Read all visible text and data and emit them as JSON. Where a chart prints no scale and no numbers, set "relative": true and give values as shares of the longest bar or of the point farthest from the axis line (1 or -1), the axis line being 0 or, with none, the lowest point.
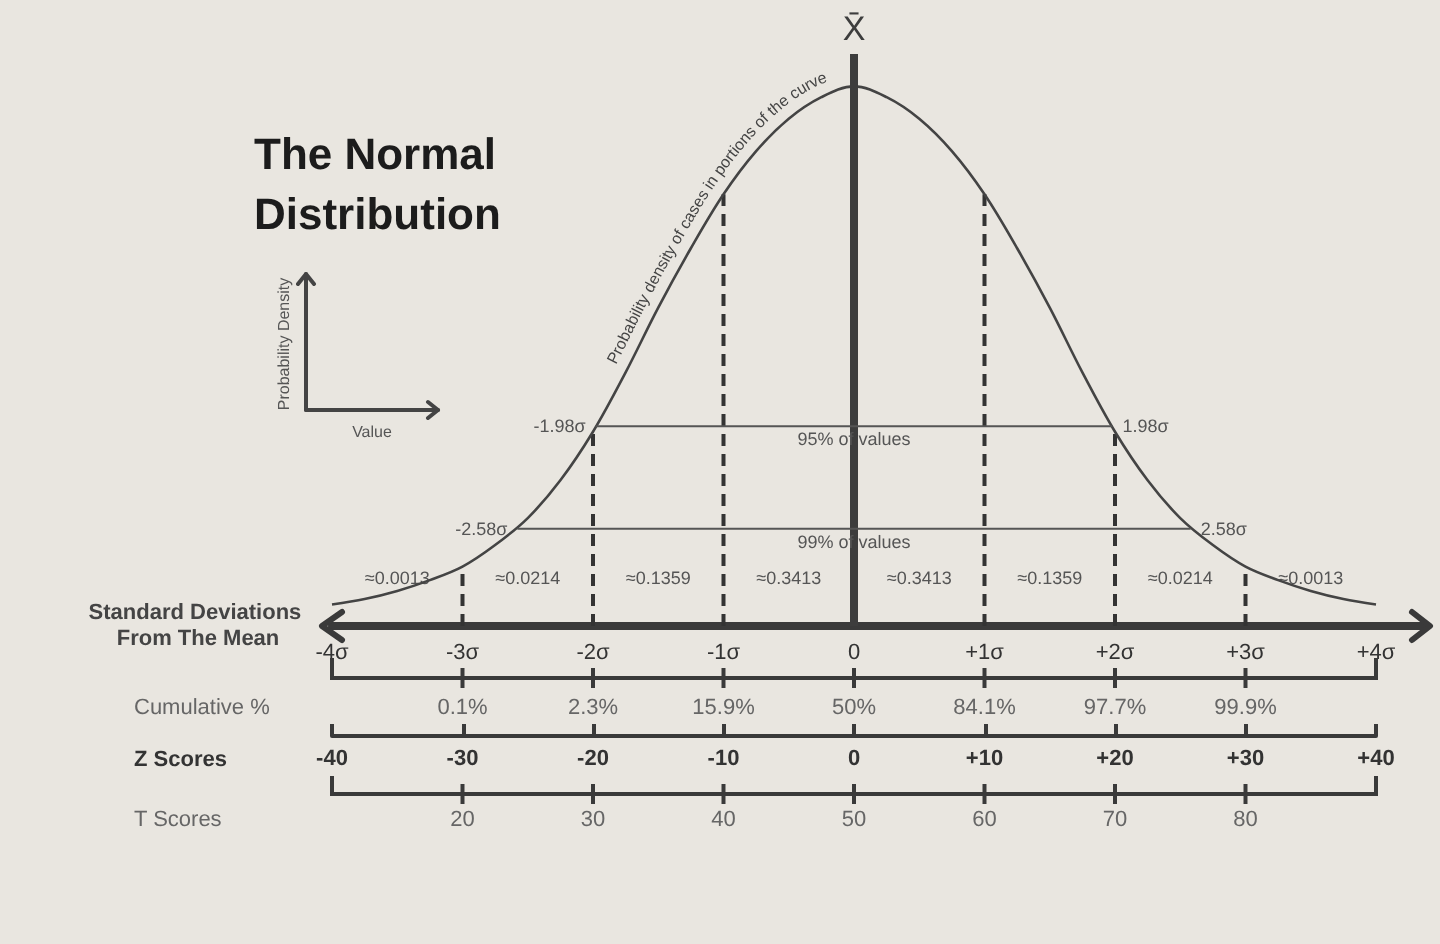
{
  "chart_data": {
    "type": "line",
    "title": "The Normal Distribution",
    "xlabel": "Standard Deviations From The Mean",
    "ylabel": "Probability Density",
    "relative": true,
    "marker": "none",
    "line_style": "solid",
    "x": [
      -4,
      -3.75,
      -3.5,
      -3.25,
      -3,
      -2.75,
      -2.5,
      -2.25,
      -2,
      -1.75,
      -1.5,
      -1.25,
      -1,
      -0.75,
      -0.5,
      -0.25,
      0,
      0.25,
      0.5,
      0.75,
      1,
      1.25,
      1.5,
      1.75,
      2,
      2.25,
      2.5,
      2.75,
      3,
      3.25,
      3.5,
      3.75,
      4
    ],
    "xlim": [
      -4,
      4
    ],
    "xticks": [
      {
        "value": -4,
        "label": "-4σ"
      },
      {
        "value": -3,
        "label": "-3σ"
      },
      {
        "value": -2,
        "label": "-2σ"
      },
      {
        "value": -1,
        "label": "-1σ"
      },
      0,
      {
        "value": 1,
        "label": "+1σ"
      },
      {
        "value": 2,
        "label": "+2σ"
      },
      {
        "value": 3,
        "label": "+3σ"
      },
      {
        "value": 4,
        "label": "+4σ"
      }
    ],
    "x2label": "Z Scores",
    "x2lim": [
      -40,
      40
    ],
    "x2ticks": [
      -40,
      -30,
      -20,
      -10,
      0,
      {
        "value": 10,
        "label": "+10"
      },
      {
        "value": 20,
        "label": "+20"
      },
      {
        "value": 30,
        "label": "+30"
      },
      {
        "value": 40,
        "label": "+40"
      }
    ],
    "series": [
      {
        "name": "Probability density of cases in portions of the curve",
        "color": "#444444",
        "values": [
          0.04,
          0.05,
          0.065,
          0.085,
          0.11,
          0.15,
          0.2,
          0.27,
          0.36,
          0.47,
          0.59,
          0.7,
          0.8,
          0.88,
          0.94,
          0.98,
          1,
          0.98,
          0.94,
          0.88,
          0.8,
          0.7,
          0.59,
          0.47,
          0.36,
          0.27,
          0.2,
          0.15,
          0.11,
          0.085,
          0.065,
          0.05,
          0.04
        ]
      },
      {
        "name": "95% of values",
        "color": "#555555",
        "x": [
          -1.98,
          1.98
        ],
        "values": [
          0.37,
          0.37
        ]
      },
      {
        "name": "99% of values",
        "color": "#555555",
        "x": [
          -2.58,
          2.58
        ],
        "values": [
          0.18,
          0.18
        ]
      },
      {
        "color": "#333333",
        "x": [
          -3,
          -3
        ],
        "values": [
          0,
          0.11
        ],
        "line_style": "dashed"
      },
      {
        "color": "#333333",
        "x": [
          -2,
          -2
        ],
        "values": [
          0,
          0.36
        ],
        "line_style": "dashed"
      },
      {
        "color": "#333333",
        "x": [
          -1,
          -1
        ],
        "values": [
          0,
          0.8
        ],
        "line_style": "dashed"
      },
      {
        "color": "#333333",
        "x": [
          1,
          1
        ],
        "values": [
          0,
          0.8
        ],
        "line_style": "dashed"
      },
      {
        "color": "#333333",
        "x": [
          2,
          2
        ],
        "values": [
          0,
          0.36
        ],
        "line_style": "dashed"
      },
      {
        "color": "#333333",
        "x": [
          3,
          3
        ],
        "values": [
          0,
          0.11
        ],
        "line_style": "dashed"
      }
    ],
    "ref_lines": [
      {
        "axis": "x",
        "value": 0,
        "label": "X̄",
        "color": "#3d3d3d",
        "line_style": "solid"
      }
    ],
    "annotations": [
      "Value",
      "≈0.0013",
      "≈0.0214",
      "≈0.1359",
      "≈0.3413",
      "≈0.3413",
      "≈0.1359",
      "≈0.0214",
      "≈0.0013",
      "Cumulative %",
      "0.1%",
      "2.3%",
      "15.9%",
      "50%",
      "84.1%",
      "97.7%",
      "99.9%",
      "T Scores",
      "20",
      "30",
      "40",
      "50",
      "60",
      "70",
      "80",
      {
        "text": "-1.98σ",
        "x": -1.98,
        "y": 0.37
      },
      {
        "text": "1.98σ",
        "x": 1.98,
        "y": 0.37
      },
      {
        "text": "-2.58σ",
        "x": -2.58,
        "y": 0.18
      },
      {
        "text": "2.58σ",
        "x": 2.58,
        "y": 0.18
      }
    ]
  }
}
